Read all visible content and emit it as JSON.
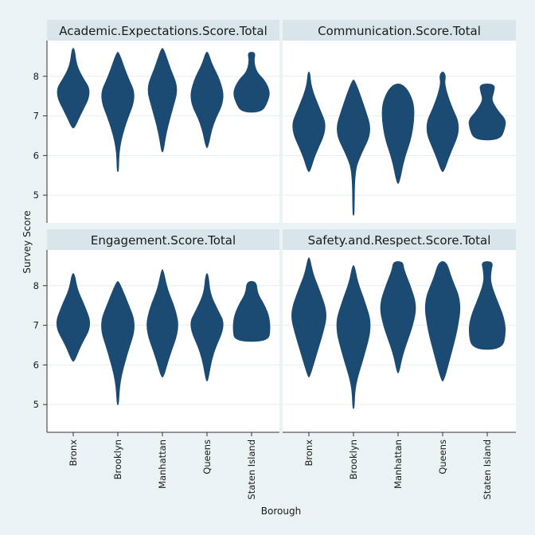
{
  "chart_data": {
    "type": "violin",
    "xlabel": "Borough",
    "ylabel": "Survey Score",
    "categories": [
      "Bronx",
      "Brooklyn",
      "Manhattan",
      "Queens",
      "Staten Island"
    ],
    "ylim": [
      4.3,
      8.9
    ],
    "yticks": [
      5,
      6,
      7,
      8
    ],
    "grid": true,
    "fill_color": "#1b4a72",
    "panel_background": "#ffffff",
    "strip_background": "#d8e5ea",
    "page_background": "#eaf2f3",
    "panels": [
      {
        "title": "Academic.Expectations.Score.Total",
        "violins": [
          {
            "category": "Bronx",
            "ymin": 6.7,
            "ymax": 8.7,
            "profile": [
              [
                6.7,
                0.05
              ],
              [
                7.0,
                0.35
              ],
              [
                7.6,
                1.0
              ],
              [
                8.0,
                0.45
              ],
              [
                8.3,
                0.15
              ],
              [
                8.7,
                0.05
              ]
            ]
          },
          {
            "category": "Brooklyn",
            "ymin": 5.6,
            "ymax": 8.6,
            "profile": [
              [
                5.6,
                0.02
              ],
              [
                6.2,
                0.06
              ],
              [
                6.8,
                0.4
              ],
              [
                7.5,
                1.0
              ],
              [
                8.0,
                0.5
              ],
              [
                8.6,
                0.05
              ]
            ]
          },
          {
            "category": "Manhattan",
            "ymin": 6.1,
            "ymax": 8.7,
            "profile": [
              [
                6.1,
                0.03
              ],
              [
                6.6,
                0.2
              ],
              [
                7.2,
                0.55
              ],
              [
                7.7,
                0.85
              ],
              [
                8.2,
                0.4
              ],
              [
                8.7,
                0.05
              ]
            ]
          },
          {
            "category": "Queens",
            "ymin": 6.2,
            "ymax": 8.6,
            "profile": [
              [
                6.2,
                0.04
              ],
              [
                6.8,
                0.3
              ],
              [
                7.4,
                0.95
              ],
              [
                7.9,
                0.7
              ],
              [
                8.3,
                0.25
              ],
              [
                8.6,
                0.05
              ]
            ]
          },
          {
            "category": "Staten Island",
            "ymin": 7.1,
            "ymax": 8.6,
            "profile": [
              [
                7.1,
                0.55
              ],
              [
                7.35,
                0.85
              ],
              [
                7.6,
                1.0
              ],
              [
                7.9,
                0.7
              ],
              [
                8.1,
                0.25
              ],
              [
                8.4,
                0.1
              ],
              [
                8.6,
                0.2
              ]
            ]
          }
        ]
      },
      {
        "title": "Communication.Score.Total",
        "violins": [
          {
            "category": "Bronx",
            "ymin": 5.6,
            "ymax": 8.1,
            "profile": [
              [
                5.6,
                0.05
              ],
              [
                6.0,
                0.3
              ],
              [
                6.7,
                1.0
              ],
              [
                7.2,
                0.55
              ],
              [
                7.7,
                0.12
              ],
              [
                8.1,
                0.03
              ]
            ]
          },
          {
            "category": "Brooklyn",
            "ymin": 4.5,
            "ymax": 7.9,
            "profile": [
              [
                4.5,
                0.02
              ],
              [
                5.6,
                0.05
              ],
              [
                6.0,
                0.35
              ],
              [
                6.6,
                1.0
              ],
              [
                7.2,
                0.6
              ],
              [
                7.9,
                0.06
              ]
            ]
          },
          {
            "category": "Manhattan",
            "ymin": 5.3,
            "ymax": 7.8,
            "profile": [
              [
                5.3,
                0.05
              ],
              [
                5.9,
                0.3
              ],
              [
                6.5,
                0.75
              ],
              [
                7.2,
                0.9
              ],
              [
                7.6,
                0.6
              ],
              [
                7.8,
                0.2
              ]
            ]
          },
          {
            "category": "Queens",
            "ymin": 5.6,
            "ymax": 8.1,
            "profile": [
              [
                5.6,
                0.05
              ],
              [
                6.0,
                0.35
              ],
              [
                6.7,
                1.0
              ],
              [
                7.3,
                0.4
              ],
              [
                7.8,
                0.08
              ],
              [
                8.0,
                0.15
              ],
              [
                8.1,
                0.05
              ]
            ]
          },
          {
            "category": "Staten Island",
            "ymin": 6.4,
            "ymax": 7.8,
            "profile": [
              [
                6.4,
                0.7
              ],
              [
                6.7,
                0.95
              ],
              [
                6.9,
                1.0
              ],
              [
                7.1,
                0.6
              ],
              [
                7.4,
                0.2
              ],
              [
                7.6,
                0.35
              ],
              [
                7.8,
                0.4
              ]
            ]
          }
        ]
      },
      {
        "title": "Engagement.Score.Total",
        "violins": [
          {
            "category": "Bronx",
            "ymin": 6.1,
            "ymax": 8.3,
            "profile": [
              [
                6.1,
                0.05
              ],
              [
                6.5,
                0.4
              ],
              [
                7.0,
                1.0
              ],
              [
                7.5,
                0.6
              ],
              [
                7.9,
                0.2
              ],
              [
                8.3,
                0.05
              ]
            ]
          },
          {
            "category": "Brooklyn",
            "ymin": 5.0,
            "ymax": 8.1,
            "profile": [
              [
                5.0,
                0.02
              ],
              [
                5.6,
                0.1
              ],
              [
                6.3,
                0.5
              ],
              [
                7.0,
                1.0
              ],
              [
                7.6,
                0.5
              ],
              [
                8.1,
                0.05
              ]
            ]
          },
          {
            "category": "Manhattan",
            "ymin": 5.7,
            "ymax": 8.4,
            "profile": [
              [
                5.7,
                0.05
              ],
              [
                6.2,
                0.35
              ],
              [
                6.9,
                0.9
              ],
              [
                7.4,
                0.7
              ],
              [
                7.9,
                0.25
              ],
              [
                8.4,
                0.03
              ]
            ]
          },
          {
            "category": "Queens",
            "ymin": 5.6,
            "ymax": 8.3,
            "profile": [
              [
                5.6,
                0.03
              ],
              [
                6.3,
                0.3
              ],
              [
                7.0,
                1.0
              ],
              [
                7.4,
                0.55
              ],
              [
                7.8,
                0.15
              ],
              [
                8.3,
                0.05
              ]
            ]
          },
          {
            "category": "Staten Island",
            "ymin": 6.6,
            "ymax": 8.1,
            "profile": [
              [
                6.6,
                0.9
              ],
              [
                6.9,
                1.0
              ],
              [
                7.2,
                0.95
              ],
              [
                7.5,
                0.7
              ],
              [
                7.8,
                0.3
              ],
              [
                8.1,
                0.25
              ]
            ]
          }
        ]
      },
      {
        "title": "Safety.and.Respect.Score.Total",
        "violins": [
          {
            "category": "Bronx",
            "ymin": 5.7,
            "ymax": 8.7,
            "profile": [
              [
                5.7,
                0.03
              ],
              [
                6.2,
                0.35
              ],
              [
                6.8,
                0.75
              ],
              [
                7.3,
                1.0
              ],
              [
                7.9,
                0.55
              ],
              [
                8.3,
                0.2
              ],
              [
                8.7,
                0.03
              ]
            ]
          },
          {
            "category": "Brooklyn",
            "ymin": 4.9,
            "ymax": 8.5,
            "profile": [
              [
                4.9,
                0.02
              ],
              [
                5.5,
                0.08
              ],
              [
                6.2,
                0.55
              ],
              [
                7.0,
                1.0
              ],
              [
                7.6,
                0.6
              ],
              [
                8.1,
                0.2
              ],
              [
                8.5,
                0.04
              ]
            ]
          },
          {
            "category": "Manhattan",
            "ymin": 5.8,
            "ymax": 8.6,
            "profile": [
              [
                5.8,
                0.03
              ],
              [
                6.3,
                0.25
              ],
              [
                7.0,
                0.8
              ],
              [
                7.5,
                1.0
              ],
              [
                8.0,
                0.65
              ],
              [
                8.4,
                0.3
              ],
              [
                8.6,
                0.25
              ]
            ]
          },
          {
            "category": "Queens",
            "ymin": 5.6,
            "ymax": 8.6,
            "profile": [
              [
                5.6,
                0.05
              ],
              [
                6.2,
                0.4
              ],
              [
                6.9,
                0.8
              ],
              [
                7.6,
                1.0
              ],
              [
                8.2,
                0.45
              ],
              [
                8.6,
                0.2
              ]
            ]
          },
          {
            "category": "Staten Island",
            "ymin": 6.4,
            "ymax": 8.6,
            "profile": [
              [
                6.4,
                0.8
              ],
              [
                6.8,
                1.0
              ],
              [
                7.2,
                0.9
              ],
              [
                7.7,
                0.45
              ],
              [
                8.1,
                0.15
              ],
              [
                8.4,
                0.2
              ],
              [
                8.6,
                0.3
              ]
            ]
          }
        ]
      }
    ]
  }
}
